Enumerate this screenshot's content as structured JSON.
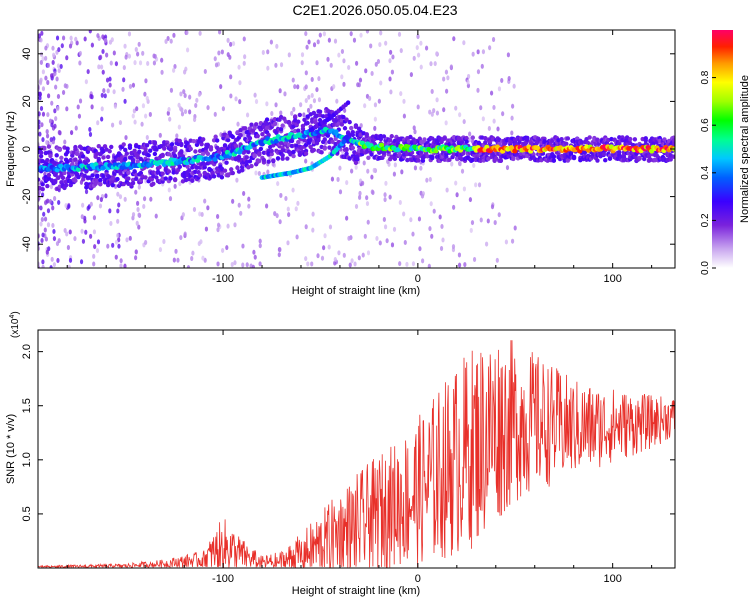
{
  "title": "C2E1.2026.050.05.04.E23",
  "chart_data": [
    {
      "type": "heatmap",
      "name": "spectrogram",
      "xlabel": "Height of straight line (km)",
      "ylabel": "Frequency (Hz)",
      "xlim": [
        -195,
        132
      ],
      "ylim": [
        -50,
        50
      ],
      "xticks": [
        -100,
        0,
        100
      ],
      "xtick_labels": [
        "-100",
        "0",
        "100"
      ],
      "yticks": [
        -40,
        -20,
        0,
        20,
        40
      ],
      "ytick_labels": [
        "-40",
        "-20",
        "0",
        "20",
        "40"
      ],
      "grid": false,
      "colorbar": {
        "label": "Normalized spectral amplitude",
        "range": [
          0,
          1
        ],
        "ticks": [
          0.0,
          0.2,
          0.4,
          0.6,
          0.8
        ],
        "tick_labels": [
          "0.0",
          "0.2",
          "0.4",
          "0.6",
          "0.8"
        ]
      },
      "main_track": {
        "description_points_km_hz": [
          [
            -185,
            -8
          ],
          [
            -150,
            -7
          ],
          [
            -120,
            -5
          ],
          [
            -100,
            -3
          ],
          [
            -80,
            3
          ],
          [
            -60,
            6
          ],
          [
            -45,
            8
          ],
          [
            -38,
            5
          ],
          [
            -25,
            1
          ],
          [
            0,
            0
          ],
          [
            50,
            0
          ],
          [
            132,
            0
          ]
        ]
      },
      "branch_track": [
        [
          -80,
          -12
        ],
        [
          -65,
          -10
        ],
        [
          -55,
          -8
        ],
        [
          -45,
          -3
        ],
        [
          -38,
          3
        ]
      ],
      "upper_branch": [
        [
          -55,
          8
        ],
        [
          -45,
          13
        ],
        [
          -35,
          20
        ]
      ]
    },
    {
      "type": "line",
      "name": "snr",
      "xlabel": "Height of straight line (km)",
      "ylabel": "SNR (10 * v/v)",
      "multiplier_label": "(x10",
      "multiplier_exp": "4",
      "multiplier_close": ")",
      "xlim": [
        -195,
        132
      ],
      "ylim": [
        0,
        2.2
      ],
      "xticks": [
        -100,
        0,
        100
      ],
      "xtick_labels": [
        "-100",
        "0",
        "100"
      ],
      "yticks": [
        0.5,
        1.0,
        1.5,
        2.0
      ],
      "ytick_labels": [
        "0.5",
        "1.0",
        "1.5",
        "2.0"
      ],
      "series": [
        {
          "name": "SNR",
          "color": "#e8302a",
          "envelope_x": [
            -195,
            -150,
            -130,
            -110,
            -100,
            -90,
            -80,
            -70,
            -60,
            -50,
            -40,
            -30,
            -20,
            -10,
            0,
            10,
            20,
            30,
            40,
            50,
            60,
            70,
            80,
            90,
            100,
            110,
            120,
            132
          ],
          "envelope_mean": [
            0.01,
            0.02,
            0.04,
            0.08,
            0.2,
            0.12,
            0.05,
            0.06,
            0.12,
            0.22,
            0.32,
            0.4,
            0.5,
            0.6,
            0.7,
            0.85,
            1.0,
            1.15,
            1.3,
            1.35,
            1.35,
            1.32,
            1.3,
            1.3,
            1.32,
            1.33,
            1.35,
            1.4
          ],
          "envelope_amp": [
            0.01,
            0.02,
            0.04,
            0.08,
            0.28,
            0.15,
            0.06,
            0.1,
            0.2,
            0.3,
            0.4,
            0.5,
            0.55,
            0.6,
            0.7,
            0.8,
            0.9,
            0.95,
            0.9,
            0.75,
            0.65,
            0.55,
            0.45,
            0.4,
            0.35,
            0.3,
            0.25,
            0.18
          ]
        }
      ]
    }
  ]
}
